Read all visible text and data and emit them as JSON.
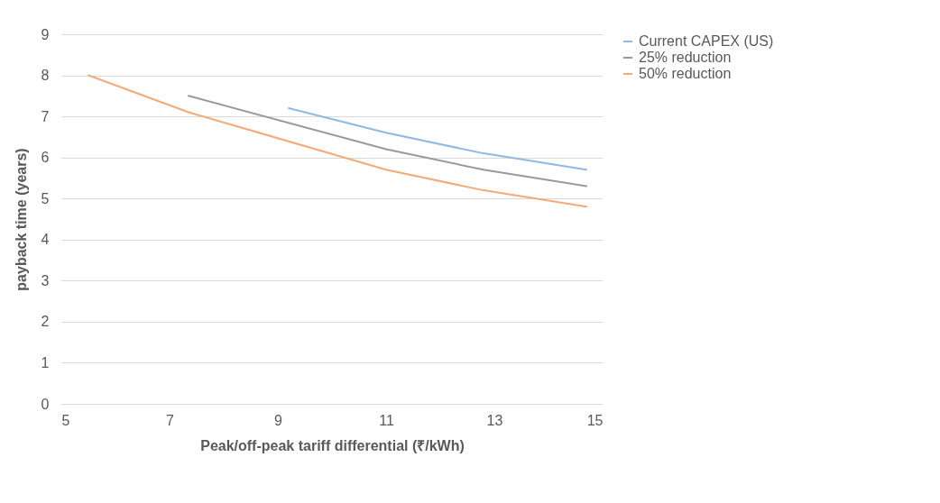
{
  "chart_data": {
    "type": "line",
    "xlabel": "Peak/off-peak tariff differential (₹/kWh)",
    "ylabel": "payback time (years)",
    "xlim": [
      5,
      15
    ],
    "xticks": [
      5,
      7,
      9,
      11,
      13,
      15
    ],
    "ylim": [
      0,
      9
    ],
    "yticks": [
      0,
      1,
      2,
      3,
      4,
      5,
      6,
      7,
      8,
      9
    ],
    "grid": "y",
    "legend": "right",
    "series": [
      {
        "name": "Current CAPEX (US)",
        "color": "#8fb8e3",
        "x": [
          9.2,
          11,
          12.8,
          14.7
        ],
        "values": [
          7.2,
          6.6,
          6.1,
          5.7
        ]
      },
      {
        "name": "25% reduction",
        "color": "#9a9a9a",
        "x": [
          7.35,
          11,
          12.8,
          14.7
        ],
        "values": [
          7.5,
          6.2,
          5.7,
          5.3
        ]
      },
      {
        "name": "50% reduction",
        "color": "#f4aa78",
        "x": [
          5.5,
          7.35,
          11,
          12.8,
          14.7
        ],
        "values": [
          8.0,
          7.1,
          5.7,
          5.2,
          4.8
        ]
      }
    ]
  }
}
